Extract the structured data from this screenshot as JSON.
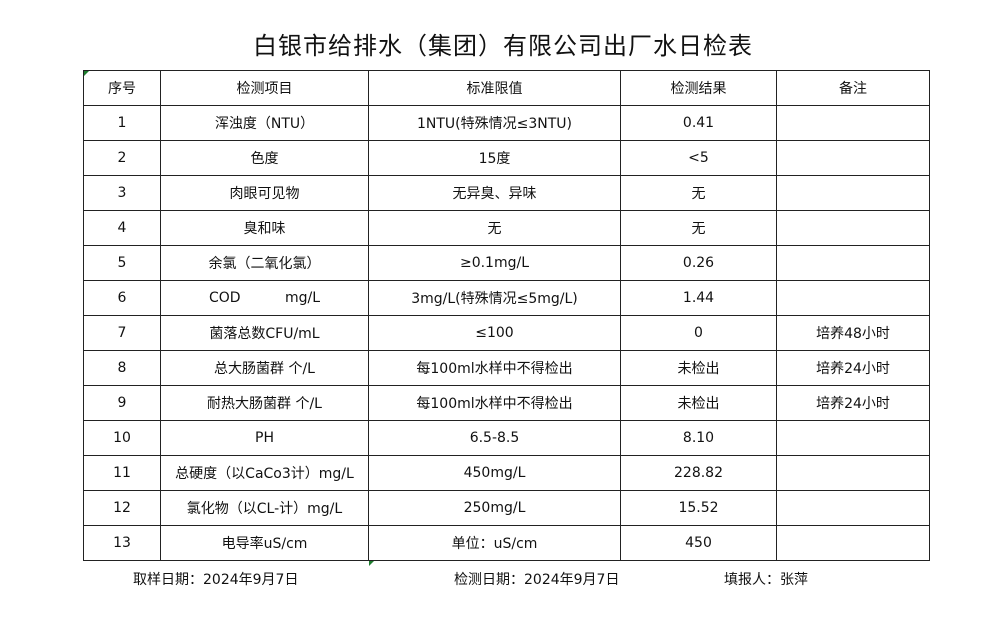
{
  "title": "白银市给排水（集团）有限公司出厂水日检表",
  "headers": [
    "序号",
    "检测项目",
    "标准限值",
    "检测结果",
    "备注"
  ],
  "rows": [
    [
      "1",
      "浑浊度（NTU）",
      "1NTU(特殊情况≤3NTU)",
      "0.41",
      ""
    ],
    [
      "2",
      "色度",
      "15度",
      "<5",
      ""
    ],
    [
      "3",
      "肉眼可见物",
      "无异臭、异味",
      "无",
      ""
    ],
    [
      "4",
      "臭和味",
      "无",
      "无",
      ""
    ],
    [
      "5",
      "余氯（二氧化氯）",
      "≥0.1mg/L",
      "0.26",
      ""
    ],
    [
      "6",
      "COD          mg/L",
      "3mg/L(特殊情况≤5mg/L)",
      "1.44",
      ""
    ],
    [
      "7",
      "菌落总数CFU/mL",
      "≤100",
      "0",
      "培养48小时"
    ],
    [
      "8",
      "总大肠菌群 个/L",
      "每100ml水样中不得检出",
      "未检出",
      "培养24小时"
    ],
    [
      "9",
      "耐热大肠菌群 个/L",
      "每100ml水样中不得检出",
      "未检出",
      "培养24小时"
    ],
    [
      "10",
      "PH",
      "6.5-8.5",
      "8.10",
      ""
    ],
    [
      "11",
      "总硬度（以CaCo3计）mg/L",
      "450mg/L",
      "228.82",
      ""
    ],
    [
      "12",
      "氯化物（以CL-计）mg/L",
      "250mg/L",
      "15.52",
      ""
    ],
    [
      "13",
      "电导率uS/cm",
      "单位：uS/cm",
      "450",
      ""
    ]
  ],
  "footer": {
    "sample_date": "取样日期：2024年9月7日",
    "test_date": "检测日期：2024年9月7日",
    "reporter": "填报人：张萍"
  }
}
